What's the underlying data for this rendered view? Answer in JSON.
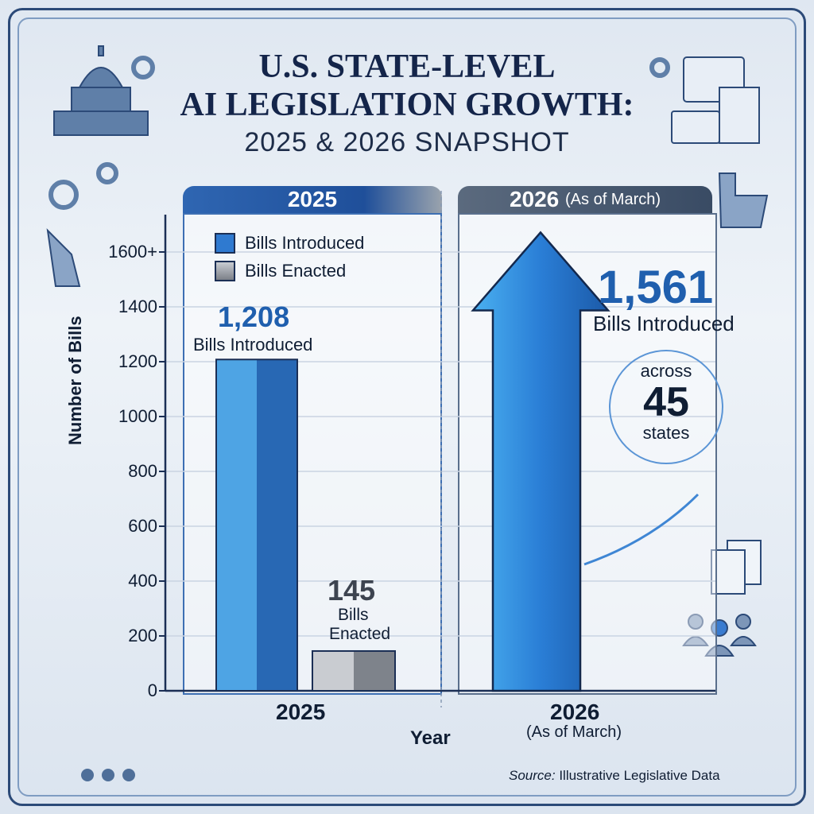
{
  "title": {
    "line1": "U.S. STATE-LEVEL",
    "line2": "AI LEGISLATION GROWTH:",
    "line3": "2025 & 2026 SNAPSHOT"
  },
  "panels": {
    "left_header": "2025",
    "right_header_year": "2026",
    "right_header_note": "(As of March)"
  },
  "legend": [
    {
      "label": "Bills Introduced",
      "color": "#2f7ad0"
    },
    {
      "label": "Bills Enacted",
      "color": "#8a8d92"
    }
  ],
  "annotations": {
    "introduced_2025_value": "1,208",
    "introduced_2025_label": "Bills Introduced",
    "enacted_2025_value": "145",
    "enacted_2025_label_1": "Bills",
    "enacted_2025_label_2": "Enacted",
    "introduced_2026_value": "1,561",
    "introduced_2026_label": "Bills Introduced",
    "states_prefix": "across",
    "states_value": "45",
    "states_suffix": "states"
  },
  "source": {
    "prefix": "Source:",
    "text": "Illustrative Legislative Data"
  },
  "chart_data": {
    "type": "bar",
    "categories": [
      "2025",
      "2026"
    ],
    "category_sublabels": [
      "",
      "(As of March)"
    ],
    "series": [
      {
        "name": "Bills Introduced",
        "values": [
          1208,
          1561
        ],
        "color": "#2f7ad0"
      },
      {
        "name": "Bills Enacted",
        "values": [
          145,
          null
        ],
        "color": "#8a8d92"
      }
    ],
    "xlabel": "Year",
    "ylabel": "Number of Bills",
    "yticks": [
      "0",
      "200",
      "400",
      "600",
      "800",
      "1000",
      "1200",
      "1400",
      "1600+"
    ],
    "ylim": [
      0,
      1700
    ],
    "grid": true,
    "legend_position": "top-left"
  }
}
